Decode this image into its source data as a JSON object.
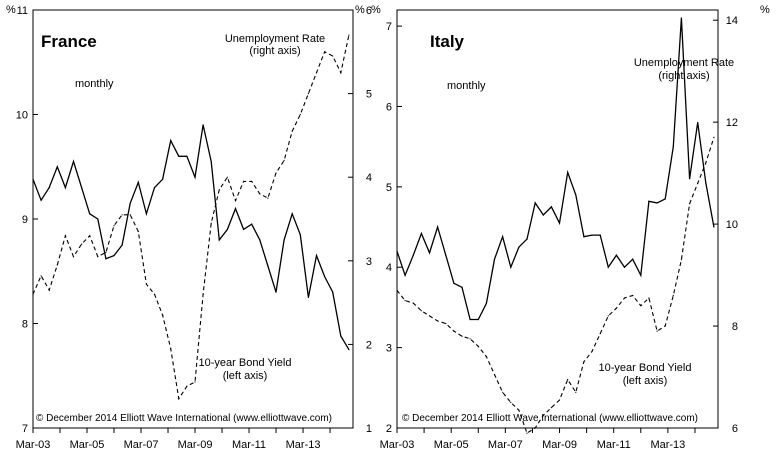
{
  "chart_data": [
    {
      "type": "line",
      "title": "France",
      "subtitle": "monthly",
      "copyright": "© December 2014 Elliott Wave International (www.elliottwave.com)",
      "x_ticks": [
        "Mar-03",
        "Mar-05",
        "Mar-07",
        "Mar-09",
        "Mar-11",
        "Mar-13"
      ],
      "xlim": [
        2003.0,
        2014.85
      ],
      "left_axis": {
        "ylim": [
          7,
          11
        ],
        "ticks": [
          "7",
          "8",
          "9",
          "10",
          "11"
        ],
        "unit": "%"
      },
      "right_axis": {
        "ylim": [
          1,
          6
        ],
        "ticks": [
          "1",
          "2",
          "3",
          "4",
          "5",
          "6"
        ],
        "unit": "%"
      },
      "series": [
        {
          "name": "10-year Bond Yield",
          "label_lines": [
            "10-year Bond Yield",
            "(left axis)"
          ],
          "axis": "left",
          "style": "solid",
          "x": [
            2003.0,
            2003.3,
            2003.6,
            2003.9,
            2004.2,
            2004.5,
            2004.8,
            2005.1,
            2005.4,
            2005.7,
            2006.0,
            2006.3,
            2006.6,
            2006.9,
            2007.2,
            2007.5,
            2007.8,
            2008.1,
            2008.4,
            2008.7,
            2009.0,
            2009.3,
            2009.6,
            2009.9,
            2010.2,
            2010.5,
            2010.8,
            2011.1,
            2011.4,
            2011.7,
            2012.0,
            2012.3,
            2012.6,
            2012.9,
            2013.2,
            2013.5,
            2013.8,
            2014.1,
            2014.4,
            2014.7
          ],
          "values": [
            9.38,
            9.18,
            9.3,
            9.5,
            9.3,
            9.55,
            9.3,
            9.05,
            9.0,
            8.62,
            8.65,
            8.75,
            9.15,
            9.35,
            9.05,
            9.3,
            9.38,
            9.75,
            9.6,
            9.6,
            9.4,
            9.9,
            9.55,
            8.8,
            8.9,
            9.1,
            8.9,
            8.95,
            8.8,
            8.55,
            8.3,
            8.8,
            9.05,
            8.85,
            8.25,
            8.65,
            8.45,
            8.3,
            7.88,
            7.75
          ]
        },
        {
          "name": "Unemployment Rate",
          "label_lines": [
            "Unemployment Rate",
            "(right axis)"
          ],
          "axis": "right",
          "style": "dashed",
          "x": [
            2003.0,
            2003.3,
            2003.6,
            2003.9,
            2004.2,
            2004.5,
            2004.8,
            2005.1,
            2005.4,
            2005.7,
            2006.0,
            2006.3,
            2006.6,
            2006.9,
            2007.2,
            2007.5,
            2007.8,
            2008.1,
            2008.4,
            2008.7,
            2009.0,
            2009.3,
            2009.6,
            2009.9,
            2010.2,
            2010.5,
            2010.8,
            2011.1,
            2011.4,
            2011.7,
            2012.0,
            2012.3,
            2012.6,
            2012.9,
            2013.2,
            2013.5,
            2013.8,
            2014.1,
            2014.4,
            2014.7
          ],
          "values": [
            2.6,
            2.82,
            2.65,
            2.95,
            3.3,
            3.05,
            3.2,
            3.3,
            3.05,
            3.1,
            3.42,
            3.55,
            3.55,
            3.35,
            2.72,
            2.6,
            2.35,
            1.95,
            1.35,
            1.5,
            1.55,
            2.6,
            3.45,
            3.85,
            4.0,
            3.72,
            3.95,
            3.95,
            3.8,
            3.75,
            4.05,
            4.2,
            4.55,
            4.75,
            5.0,
            5.25,
            5.5,
            5.45,
            5.25,
            5.7
          ]
        }
      ]
    },
    {
      "type": "line",
      "title": "Italy",
      "subtitle": "monthly",
      "copyright": "© December 2014 Elliott Wave International (www.elliottwave.com)",
      "x_ticks": [
        "Mar-03",
        "Mar-05",
        "Mar-07",
        "Mar-09",
        "Mar-11",
        "Mar-13"
      ],
      "xlim": [
        2003.0,
        2014.85
      ],
      "left_axis": {
        "ylim": [
          2,
          7.2
        ],
        "ticks": [
          "2",
          "3",
          "4",
          "5",
          "6",
          "7"
        ],
        "unit": "%"
      },
      "right_axis": {
        "ylim": [
          6,
          14.2
        ],
        "ticks": [
          "6",
          "8",
          "10",
          "12",
          "14"
        ],
        "unit": "%"
      },
      "series": [
        {
          "name": "10-year Bond Yield",
          "label_lines": [
            "10-year Bond Yield",
            "(left axis)"
          ],
          "axis": "left",
          "style": "solid",
          "x": [
            2003.0,
            2003.3,
            2003.6,
            2003.9,
            2004.2,
            2004.5,
            2004.8,
            2005.1,
            2005.4,
            2005.7,
            2006.0,
            2006.3,
            2006.6,
            2006.9,
            2007.2,
            2007.5,
            2007.8,
            2008.1,
            2008.4,
            2008.7,
            2009.0,
            2009.3,
            2009.6,
            2009.9,
            2010.2,
            2010.5,
            2010.8,
            2011.1,
            2011.4,
            2011.7,
            2012.0,
            2012.3,
            2012.6,
            2012.9,
            2013.2,
            2013.5,
            2013.8,
            2014.1,
            2014.4,
            2014.7
          ],
          "values": [
            4.2,
            3.9,
            4.15,
            4.42,
            4.18,
            4.5,
            4.15,
            3.8,
            3.75,
            3.35,
            3.35,
            3.55,
            4.1,
            4.38,
            4.0,
            4.25,
            4.35,
            4.8,
            4.65,
            4.75,
            4.55,
            5.18,
            4.9,
            4.38,
            4.4,
            4.4,
            4.0,
            4.15,
            4.0,
            4.1,
            3.9,
            4.82,
            4.8,
            4.85,
            5.5,
            7.1,
            5.1,
            5.8,
            5.05,
            4.5
          ]
        },
        {
          "name": "Unemployment Rate",
          "label_lines": [
            "Unemployment Rate",
            "(right axis)"
          ],
          "axis": "right",
          "style": "dashed",
          "x": [
            2003.0,
            2003.3,
            2003.6,
            2003.9,
            2004.2,
            2004.5,
            2004.8,
            2005.1,
            2005.4,
            2005.7,
            2006.0,
            2006.3,
            2006.6,
            2006.9,
            2007.2,
            2007.5,
            2007.8,
            2008.1,
            2008.4,
            2008.7,
            2009.0,
            2009.3,
            2009.6,
            2009.9,
            2010.2,
            2010.5,
            2010.8,
            2011.1,
            2011.4,
            2011.7,
            2012.0,
            2012.3,
            2012.6,
            2012.9,
            2013.2,
            2013.5,
            2013.8,
            2014.1,
            2014.4,
            2014.7
          ],
          "values": [
            8.7,
            8.5,
            8.45,
            8.3,
            8.2,
            8.1,
            8.05,
            7.9,
            7.8,
            7.75,
            7.6,
            7.4,
            7.05,
            6.7,
            6.5,
            6.35,
            5.9,
            6.0,
            6.25,
            6.4,
            6.55,
            6.95,
            6.7,
            7.3,
            7.5,
            7.85,
            8.2,
            8.35,
            8.55,
            8.6,
            8.4,
            8.55,
            7.9,
            8.0,
            8.6,
            9.3,
            10.4,
            10.8,
            11.2,
            11.7
          ]
        }
      ]
    }
  ]
}
